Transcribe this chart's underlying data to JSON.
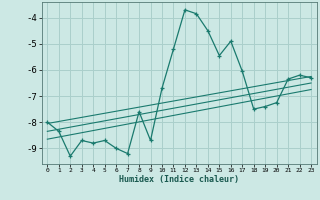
{
  "xlabel": "Humidex (Indice chaleur)",
  "background_color": "#cce8e4",
  "grid_color": "#aacfcb",
  "line_color": "#1a7a6e",
  "xlim": [
    -0.5,
    23.5
  ],
  "ylim": [
    -9.6,
    -3.4
  ],
  "yticks": [
    -9,
    -8,
    -7,
    -6,
    -5,
    -4
  ],
  "xticks": [
    0,
    1,
    2,
    3,
    4,
    5,
    6,
    7,
    8,
    9,
    10,
    11,
    12,
    13,
    14,
    15,
    16,
    17,
    18,
    19,
    20,
    21,
    22,
    23
  ],
  "main_x": [
    0,
    1,
    2,
    3,
    4,
    5,
    6,
    7,
    8,
    9,
    10,
    11,
    12,
    13,
    14,
    15,
    16,
    17,
    18,
    19,
    20,
    21,
    22,
    23
  ],
  "main_y": [
    -8.0,
    -8.35,
    -9.3,
    -8.7,
    -8.8,
    -8.7,
    -9.0,
    -9.2,
    -7.6,
    -8.7,
    -6.7,
    -5.2,
    -3.7,
    -3.85,
    -4.5,
    -5.45,
    -4.9,
    -6.05,
    -7.5,
    -7.4,
    -7.25,
    -6.35,
    -6.2,
    -6.3
  ],
  "line1_x": [
    0,
    23
  ],
  "line1_y": [
    -8.05,
    -6.25
  ],
  "line2_x": [
    0,
    23
  ],
  "line2_y": [
    -8.35,
    -6.5
  ],
  "line3_x": [
    0,
    23
  ],
  "line3_y": [
    -8.65,
    -6.75
  ]
}
